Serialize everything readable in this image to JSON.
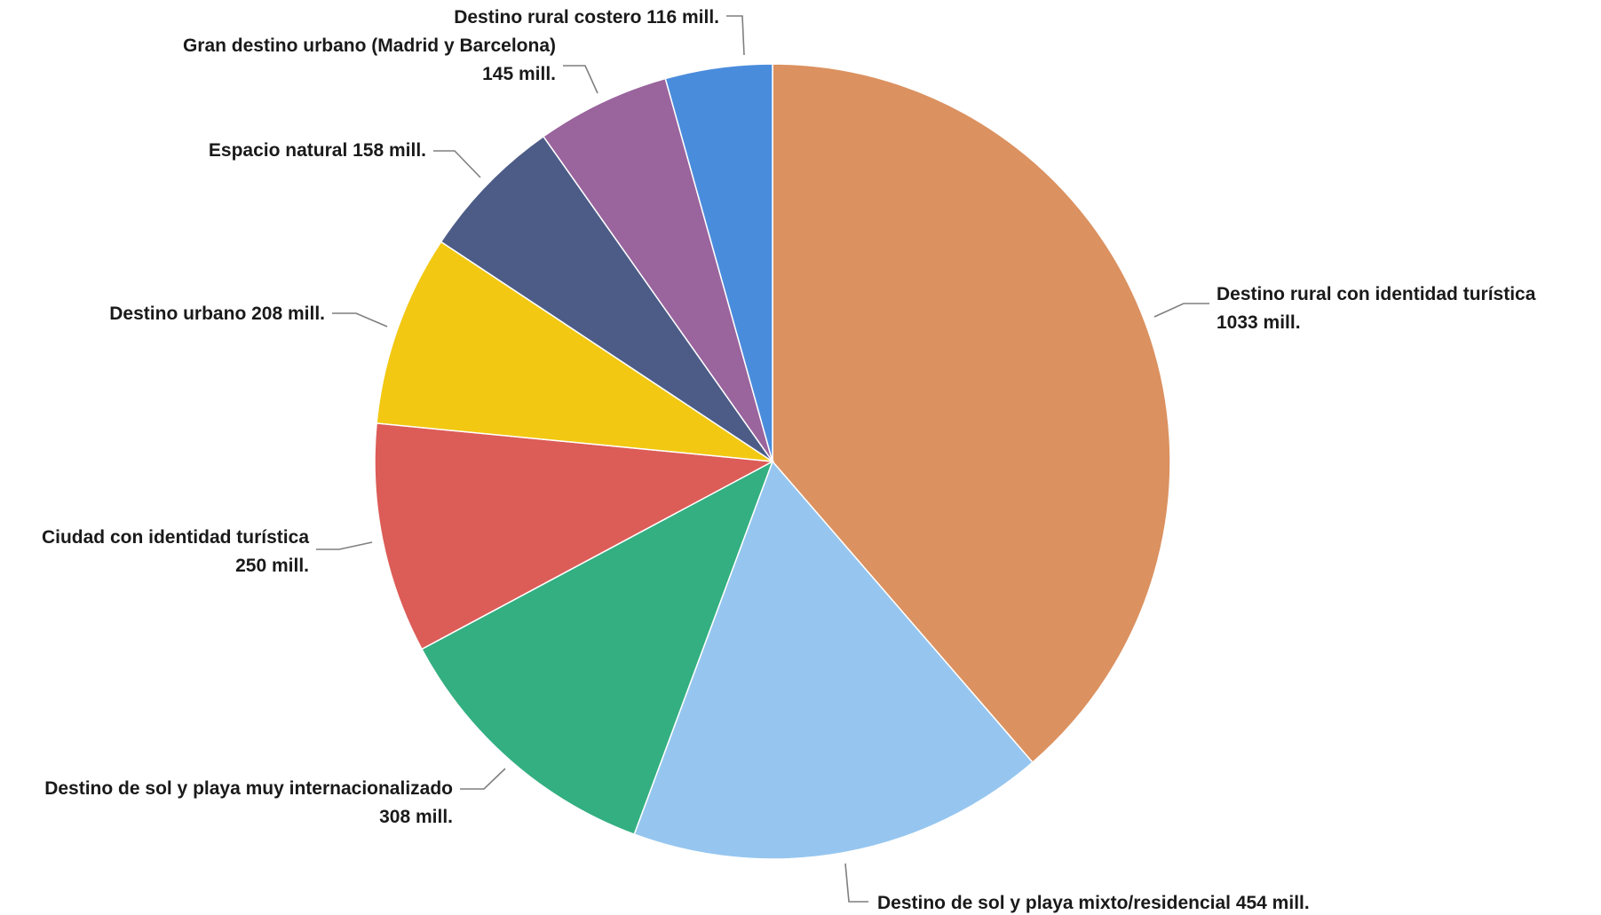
{
  "chart_data": {
    "type": "pie",
    "title": "",
    "start_angle_deg": 0,
    "direction": "clockwise",
    "legend": "none",
    "unit": "mill.",
    "slices": [
      {
        "label": "Destino rural con identidad turística",
        "value": 1033,
        "value_text": "1033 mill.",
        "color": "#DB9160"
      },
      {
        "label": "Destino de sol y playa mixto/residencial",
        "value": 454,
        "value_text": "454 mill.",
        "color": "#96C6EF"
      },
      {
        "label": "Destino de sol y playa muy internacionalizado",
        "value": 308,
        "value_text": "308 mill.",
        "color": "#33AF81"
      },
      {
        "label": "Ciudad con identidad turística",
        "value": 250,
        "value_text": "250 mill.",
        "color": "#DC5C57"
      },
      {
        "label": "Destino urbano",
        "value": 208,
        "value_text": "208 mill.",
        "color": "#F2C812"
      },
      {
        "label": "Espacio natural",
        "value": 158,
        "value_text": "158 mill.",
        "color": "#4C5C87"
      },
      {
        "label": "Gran destino urbano (Madrid y Barcelona)",
        "value": 145,
        "value_text": "145 mill.",
        "color": "#9A649D"
      },
      {
        "label": "Destino rural costero",
        "value": 116,
        "value_text": "116 mill.",
        "color": "#4A8CDC"
      }
    ]
  }
}
